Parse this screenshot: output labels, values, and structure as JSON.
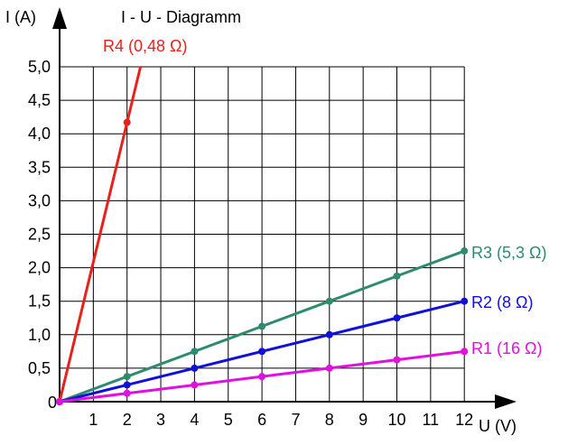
{
  "chart_data": {
    "type": "line",
    "title": "I - U - Diagramm",
    "xlabel": "U (V)",
    "ylabel": "I (A)",
    "xlim": [
      0,
      12
    ],
    "ylim": [
      0,
      5
    ],
    "xticks": [
      "1",
      "2",
      "3",
      "4",
      "5",
      "6",
      "7",
      "8",
      "9",
      "10",
      "11",
      "12"
    ],
    "yticks": [
      "0,5",
      "1,0",
      "1,5",
      "2,0",
      "2,5",
      "3,0",
      "3,5",
      "4,0",
      "4,5",
      "5,0"
    ],
    "origin_label": "0",
    "grid": true,
    "series": [
      {
        "name": "R4 (0,48 Ω)",
        "color": "#e8211a",
        "x": [
          0,
          2
        ],
        "y": [
          0,
          4.17
        ],
        "extend_to_y": 5
      },
      {
        "name": "R3 (5,3 Ω)",
        "color": "#2e8b6e",
        "x": [
          0,
          2,
          4,
          6,
          8,
          10,
          12
        ],
        "y": [
          0,
          0.375,
          0.75,
          1.125,
          1.5,
          1.875,
          2.25
        ]
      },
      {
        "name": "R2 (8 Ω)",
        "color": "#1010d8",
        "x": [
          0,
          2,
          4,
          6,
          8,
          10,
          12
        ],
        "y": [
          0,
          0.25,
          0.5,
          0.75,
          1.0,
          1.25,
          1.5
        ]
      },
      {
        "name": "R1 (16  Ω)",
        "color": "#e010e0",
        "x": [
          0,
          2,
          4,
          6,
          8,
          10,
          12
        ],
        "y": [
          0,
          0.125,
          0.25,
          0.375,
          0.5,
          0.625,
          0.75
        ]
      }
    ]
  }
}
